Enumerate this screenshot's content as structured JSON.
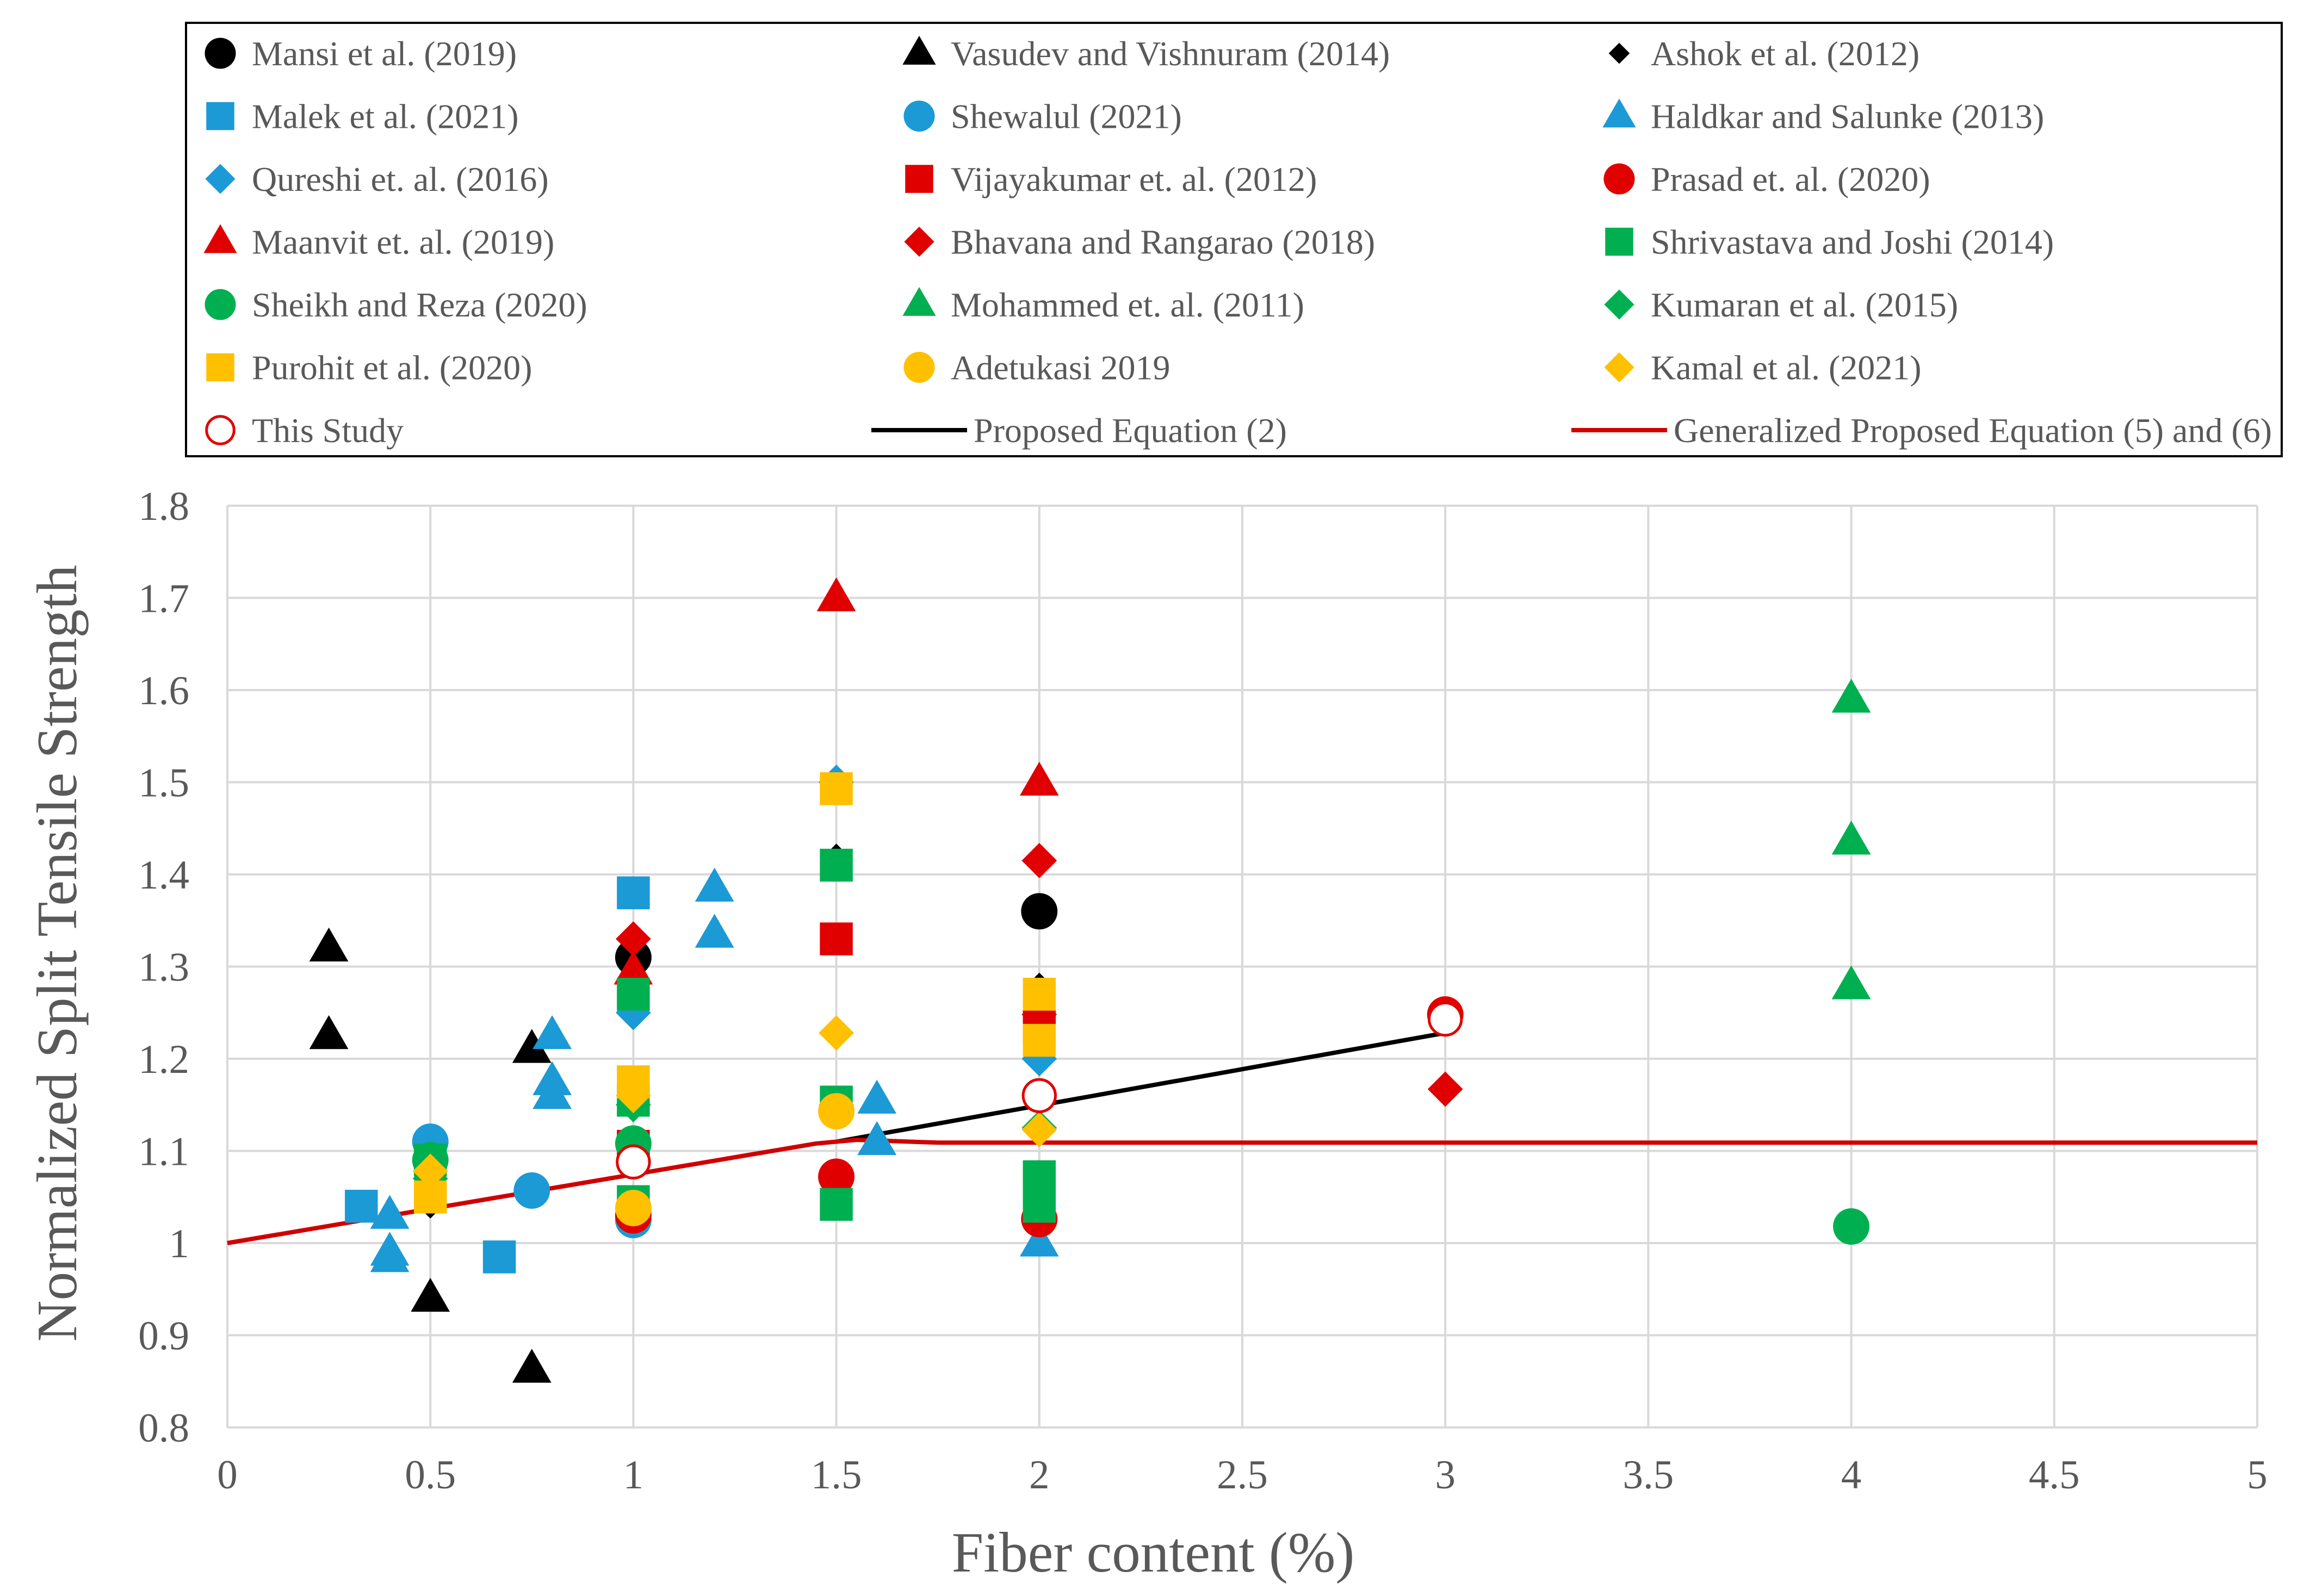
{
  "chart_data": {
    "type": "scatter",
    "title": "",
    "xlabel": "Fiber content (%)",
    "ylabel": "Normalized Split Tensile Strength",
    "xlim": [
      0,
      5
    ],
    "ylim": [
      0.8,
      1.8
    ],
    "x_ticks": [
      "0",
      "0.5",
      "1",
      "1.5",
      "2",
      "2.5",
      "3",
      "3.5",
      "4",
      "4.5",
      "5"
    ],
    "y_ticks": [
      "0.8",
      "0.9",
      "1",
      "1.1",
      "1.2",
      "1.3",
      "1.4",
      "1.5",
      "1.6",
      "1.7",
      "1.8"
    ],
    "grid": true,
    "legend_position": "top",
    "series": [
      {
        "name": "Mansi et al. (2019)",
        "marker": "circle",
        "color": "#000000",
        "points": [
          [
            1,
            1.31
          ],
          [
            2,
            1.36
          ]
        ]
      },
      {
        "name": "Vasudev and Vishnuram (2014)",
        "marker": "triangle",
        "color": "#000000",
        "points": [
          [
            0.25,
            1.32
          ],
          [
            0.25,
            1.225
          ],
          [
            0.5,
            0.94
          ],
          [
            0.75,
            1.21
          ],
          [
            0.75,
            0.863
          ]
        ]
      },
      {
        "name": "Ashok et al. (2012)",
        "marker": "diamond-small",
        "color": "#000000",
        "points": [
          [
            1.5,
            1.42
          ],
          [
            2,
            1.28
          ],
          [
            0.5,
            1.04
          ]
        ]
      },
      {
        "name": "Malek et al. (2021)",
        "marker": "square",
        "color": "#1b9ad6",
        "points": [
          [
            0.33,
            1.04
          ],
          [
            0.67,
            0.985
          ],
          [
            1,
            1.38
          ]
        ]
      },
      {
        "name": "Shewalul (2021)",
        "marker": "circle",
        "color": "#1b9ad6",
        "points": [
          [
            0.5,
            1.11
          ],
          [
            0.75,
            1.057
          ],
          [
            1,
            1.025
          ]
        ]
      },
      {
        "name": "Haldkar and Salunke (2013)",
        "marker": "triangle",
        "color": "#1b9ad6",
        "points": [
          [
            0.4,
            1.03
          ],
          [
            0.4,
            0.99
          ],
          [
            0.4,
            0.983
          ],
          [
            0.8,
            1.225
          ],
          [
            0.8,
            1.175
          ],
          [
            0.8,
            1.16
          ],
          [
            1.2,
            1.385
          ],
          [
            1.2,
            1.335
          ],
          [
            1.6,
            1.155
          ],
          [
            1.6,
            1.11
          ],
          [
            2,
            1.0
          ]
        ]
      },
      {
        "name": "Qureshi et. al.  (2016)",
        "marker": "diamond",
        "color": "#1b9ad6",
        "points": [
          [
            1,
            1.25
          ],
          [
            1.5,
            1.5
          ],
          [
            2,
            1.2
          ]
        ]
      },
      {
        "name": "Vijayakumar et. al.  (2012)",
        "marker": "square",
        "color": "#e00000",
        "points": [
          [
            1,
            1.105
          ],
          [
            1.5,
            1.33
          ],
          [
            2,
            1.235
          ]
        ]
      },
      {
        "name": " Prasad et. al.  (2020)",
        "marker": "circle",
        "color": "#e00000",
        "points": [
          [
            1,
            1.03
          ],
          [
            1.5,
            1.072
          ],
          [
            2,
            1.026
          ],
          [
            3,
            1.248
          ]
        ]
      },
      {
        "name": "Maanvit et. al.  (2019)",
        "marker": "triangle",
        "color": "#e00000",
        "points": [
          [
            1,
            1.295
          ],
          [
            1.5,
            1.7
          ],
          [
            2,
            1.5
          ]
        ]
      },
      {
        "name": "Bhavana and Rangarao  (2018)",
        "marker": "diamond",
        "color": "#e00000",
        "points": [
          [
            1,
            1.33
          ],
          [
            2,
            1.415
          ],
          [
            2,
            1.248
          ],
          [
            3,
            1.248
          ],
          [
            3,
            1.167
          ]
        ]
      },
      {
        "name": "Shrivastava and Joshi  (2014)",
        "marker": "square",
        "color": "#00b050",
        "points": [
          [
            0.5,
            1.09
          ],
          [
            1,
            1.27
          ],
          [
            1,
            1.155
          ],
          [
            1,
            1.045
          ],
          [
            1.5,
            1.41
          ],
          [
            1.5,
            1.153
          ],
          [
            1.5,
            1.042
          ],
          [
            2,
            1.072
          ],
          [
            2,
            1.04
          ]
        ]
      },
      {
        "name": "Sheikh and Reza (2020)",
        "marker": "circle",
        "color": "#00b050",
        "points": [
          [
            0.5,
            1.09
          ],
          [
            1,
            1.108
          ],
          [
            4,
            1.018
          ]
        ]
      },
      {
        "name": "Mohammed et. al.  (2011)",
        "marker": "triangle",
        "color": "#00b050",
        "points": [
          [
            4,
            1.59
          ],
          [
            4,
            1.436
          ],
          [
            4,
            1.279
          ]
        ]
      },
      {
        "name": "Kumaran et al. (2015)",
        "marker": "diamond",
        "color": "#00b050",
        "points": [
          [
            0.5,
            1.07
          ],
          [
            1,
            1.15
          ],
          [
            1.5,
            1.15
          ],
          [
            2,
            1.125
          ]
        ]
      },
      {
        "name": "Purohit et al. (2020)",
        "marker": "square",
        "color": "#ffc000",
        "points": [
          [
            0.5,
            1.05
          ],
          [
            1,
            1.175
          ],
          [
            1.5,
            1.493
          ],
          [
            2,
            1.27
          ],
          [
            2,
            1.22
          ]
        ]
      },
      {
        "name": "Adetukasi 2019",
        "marker": "circle",
        "color": "#ffc000",
        "points": [
          [
            1,
            1.038
          ],
          [
            1.5,
            1.143
          ]
        ]
      },
      {
        "name": "Kamal et al.  (2021)",
        "marker": "diamond",
        "color": "#ffc000",
        "points": [
          [
            0.5,
            1.078
          ],
          [
            1,
            1.16
          ],
          [
            1.5,
            1.228
          ],
          [
            2,
            1.123
          ]
        ]
      },
      {
        "name": "This Study",
        "marker": "circle-open",
        "color": "#e00000",
        "points": [
          [
            1,
            1.088
          ],
          [
            2,
            1.16
          ],
          [
            3,
            1.243
          ]
        ]
      },
      {
        "name": "Proposed Equation (2)",
        "marker": "line",
        "color": "#000000",
        "points": [
          [
            1.5,
            1.11
          ],
          [
            3,
            1.228
          ]
        ]
      },
      {
        "name": "Generalized Proposed Equation (5) and (6)",
        "marker": "line",
        "color": "#d00000",
        "points": [
          [
            0,
            1.0
          ],
          [
            1.45,
            1.108
          ],
          [
            1.55,
            1.112
          ],
          [
            1.75,
            1.109
          ],
          [
            5,
            1.109
          ]
        ]
      }
    ]
  }
}
